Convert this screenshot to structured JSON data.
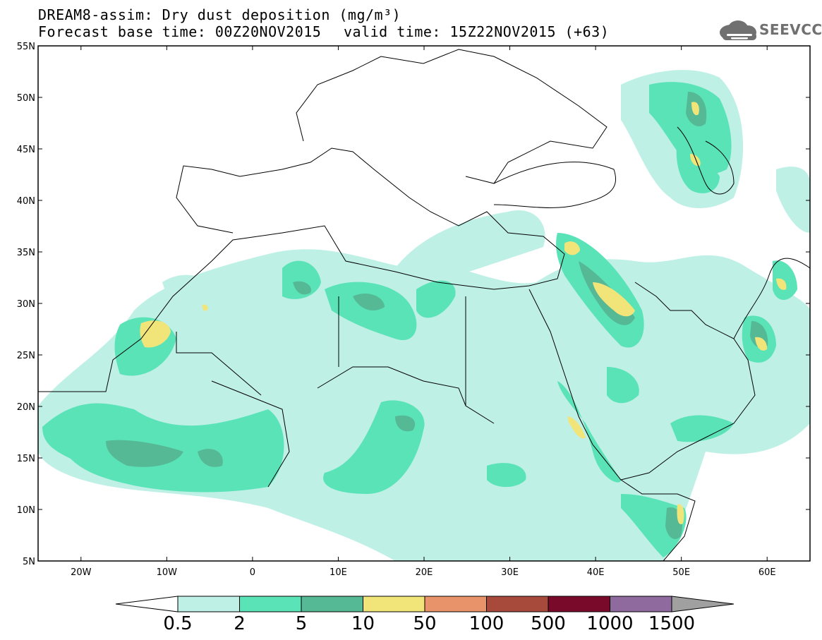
{
  "header": {
    "title_line1": "DREAM8-assim: Dry dust deposition (mg/m³)",
    "title_line2": "Forecast base time: 00Z20NOV2015",
    "valid_time": "valid time: 15Z22NOV2015 (+63)"
  },
  "logo": {
    "text": "SEEVCCC",
    "icon": "cloud-icon"
  },
  "map": {
    "lat_labels": [
      "55N",
      "50N",
      "45N",
      "40N",
      "35N",
      "30N",
      "25N",
      "20N",
      "15N",
      "10N",
      "5N"
    ],
    "lon_labels": [
      "20W",
      "10W",
      "0",
      "10E",
      "20E",
      "30E",
      "40E",
      "50E",
      "60E"
    ],
    "lon_range": [
      -25,
      65
    ],
    "lat_range": [
      5,
      55
    ]
  },
  "colorbar": {
    "labels": [
      "0.5",
      "2",
      "5",
      "10",
      "50",
      "100",
      "500",
      "1000",
      "1500"
    ],
    "colors": [
      "#bff0e6",
      "#5be3b8",
      "#56b995",
      "#f1e57a",
      "#e8936a",
      "#a84a3b",
      "#7a0a2a",
      "#8e6a9e",
      "#a0a0a0"
    ],
    "under_color": "#ffffff",
    "over_color": "#a0a0a0"
  },
  "legend_colors": {
    "level1": "#bff0e6",
    "level2": "#5be3b8",
    "level3": "#56b995",
    "level4": "#f1e57a"
  }
}
